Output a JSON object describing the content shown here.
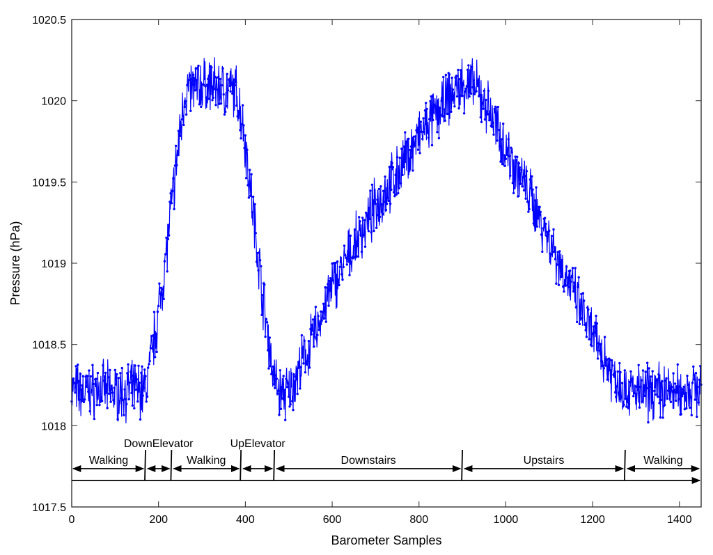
{
  "chart_data": {
    "type": "line",
    "title": "",
    "xlabel": "Barometer Samples",
    "ylabel": "Pressure (hPa)",
    "xlim": [
      0,
      1450
    ],
    "ylim": [
      1017.5,
      1020.5
    ],
    "xticks": [
      0,
      200,
      400,
      600,
      800,
      1000,
      1200,
      1400
    ],
    "xtick_labels": [
      "0",
      "200",
      "400",
      "600",
      "800",
      "1000",
      "1200",
      "1400"
    ],
    "yticks": [
      1017.5,
      1018,
      1018.5,
      1019,
      1019.5,
      1020,
      1020.5
    ],
    "ytick_labels": [
      "1017.5",
      "1018",
      "1018.5",
      "1019",
      "1019.5",
      "1020",
      "1020.5"
    ],
    "grid": false,
    "marker": "dot",
    "series_color": "#0000ff",
    "series": [
      {
        "name": "",
        "x": [
          0,
          30,
          60,
          100,
          140,
          170,
          185,
          200,
          215,
          230,
          245,
          260,
          300,
          340,
          380,
          395,
          410,
          425,
          440,
          455,
          465,
          480,
          500,
          550,
          600,
          650,
          700,
          750,
          800,
          850,
          880,
          900,
          930,
          960,
          1000,
          1050,
          1100,
          1150,
          1200,
          1250,
          1280,
          1310,
          1350,
          1400,
          1450
        ],
        "y": [
          1018.22,
          1018.2,
          1018.23,
          1018.2,
          1018.22,
          1018.22,
          1018.45,
          1018.7,
          1019.0,
          1019.35,
          1019.7,
          1020.05,
          1020.1,
          1020.08,
          1020.05,
          1019.85,
          1019.5,
          1019.15,
          1018.8,
          1018.5,
          1018.3,
          1018.2,
          1018.2,
          1018.5,
          1018.85,
          1019.1,
          1019.35,
          1019.55,
          1019.78,
          1019.95,
          1020.05,
          1020.1,
          1020.08,
          1019.95,
          1019.7,
          1019.45,
          1019.15,
          1018.85,
          1018.55,
          1018.3,
          1018.22,
          1018.2,
          1018.22,
          1018.2,
          1018.25
        ]
      }
    ],
    "segments": [
      {
        "label": "Walking",
        "x0": 0,
        "x1": 170
      },
      {
        "label": "DownElevator",
        "x0": 170,
        "x1": 230
      },
      {
        "label": "Walking",
        "x0": 230,
        "x1": 390
      },
      {
        "label": "UpElevator",
        "x0": 390,
        "x1": 467
      },
      {
        "label": "Downstairs",
        "x0": 467,
        "x1": 900
      },
      {
        "label": "Upstairs",
        "x0": 900,
        "x1": 1275
      },
      {
        "label": "Walking",
        "x0": 1275,
        "x1": 1450
      }
    ]
  }
}
